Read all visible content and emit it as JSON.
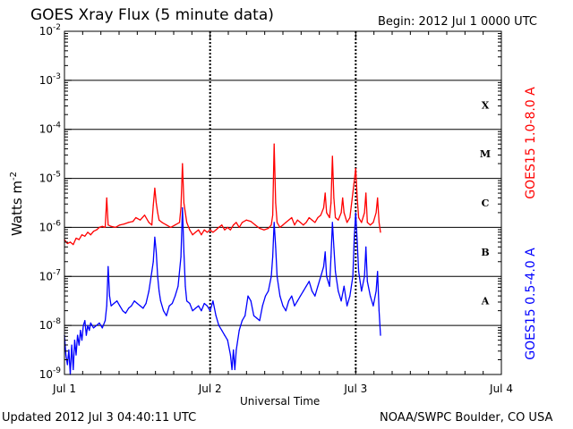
{
  "header": {
    "title": "GOES Xray Flux (5 minute data)",
    "begin": "Begin:  2012 Jul 1 0000 UTC"
  },
  "footer": {
    "updated": "Updated 2012 Jul  3 04:40:11 UTC",
    "credit": "NOAA/SWPC Boulder, CO USA"
  },
  "chart_data": {
    "type": "line",
    "title": "GOES Xray Flux (5 minute data)",
    "xlabel": "Universal Time",
    "ylabel": "Watts m",
    "ylabel_exponent": "-2",
    "y_scale": "log",
    "ylim_exp": [
      -9,
      -2
    ],
    "y_ticks": [
      {
        "base": "10",
        "exp": "-9"
      },
      {
        "base": "10",
        "exp": "-8"
      },
      {
        "base": "10",
        "exp": "-7"
      },
      {
        "base": "10",
        "exp": "-6"
      },
      {
        "base": "10",
        "exp": "-5"
      },
      {
        "base": "10",
        "exp": "-4"
      },
      {
        "base": "10",
        "exp": "-3"
      },
      {
        "base": "10",
        "exp": "-2"
      }
    ],
    "x_unit": "days since 2012 Jul 1 0000 UTC",
    "xlim": [
      0,
      3
    ],
    "x_ticks": [
      "Jul 1",
      "Jul 2",
      "Jul 3",
      "Jul 4"
    ],
    "flare_classes": [
      {
        "label": "A",
        "exp": -7.5
      },
      {
        "label": "B",
        "exp": -6.5
      },
      {
        "label": "C",
        "exp": -5.5
      },
      {
        "label": "M",
        "exp": -4.5
      },
      {
        "label": "X",
        "exp": -3.5
      }
    ],
    "series": [
      {
        "name": "GOES15 1.0-8.0 A",
        "color": "#ff0000",
        "points": [
          [
            0.0,
            -6.25
          ],
          [
            0.02,
            -6.33
          ],
          [
            0.04,
            -6.3
          ],
          [
            0.06,
            -6.35
          ],
          [
            0.08,
            -6.22
          ],
          [
            0.1,
            -6.25
          ],
          [
            0.12,
            -6.15
          ],
          [
            0.14,
            -6.18
          ],
          [
            0.16,
            -6.1
          ],
          [
            0.18,
            -6.15
          ],
          [
            0.2,
            -6.08
          ],
          [
            0.22,
            -6.05
          ],
          [
            0.24,
            -6.0
          ],
          [
            0.26,
            -5.98
          ],
          [
            0.28,
            -6.0
          ],
          [
            0.29,
            -5.4
          ],
          [
            0.3,
            -5.95
          ],
          [
            0.32,
            -5.98
          ],
          [
            0.35,
            -6.0
          ],
          [
            0.38,
            -5.95
          ],
          [
            0.41,
            -5.93
          ],
          [
            0.44,
            -5.9
          ],
          [
            0.47,
            -5.88
          ],
          [
            0.49,
            -5.8
          ],
          [
            0.52,
            -5.85
          ],
          [
            0.55,
            -5.75
          ],
          [
            0.58,
            -5.9
          ],
          [
            0.6,
            -5.95
          ],
          [
            0.61,
            -5.55
          ],
          [
            0.62,
            -5.2
          ],
          [
            0.63,
            -5.5
          ],
          [
            0.64,
            -5.7
          ],
          [
            0.65,
            -5.85
          ],
          [
            0.67,
            -5.9
          ],
          [
            0.7,
            -5.95
          ],
          [
            0.73,
            -6.0
          ],
          [
            0.76,
            -5.95
          ],
          [
            0.79,
            -5.9
          ],
          [
            0.8,
            -5.6
          ],
          [
            0.81,
            -4.7
          ],
          [
            0.82,
            -5.5
          ],
          [
            0.84,
            -5.9
          ],
          [
            0.86,
            -6.05
          ],
          [
            0.88,
            -6.15
          ],
          [
            0.9,
            -6.1
          ],
          [
            0.92,
            -6.05
          ],
          [
            0.94,
            -6.15
          ],
          [
            0.96,
            -6.05
          ],
          [
            0.98,
            -6.1
          ],
          [
            1.0,
            -6.05
          ],
          [
            1.02,
            -6.1
          ],
          [
            1.04,
            -6.05
          ],
          [
            1.06,
            -6.0
          ],
          [
            1.08,
            -5.95
          ],
          [
            1.1,
            -6.05
          ],
          [
            1.12,
            -6.0
          ],
          [
            1.14,
            -6.05
          ],
          [
            1.16,
            -5.95
          ],
          [
            1.18,
            -5.9
          ],
          [
            1.2,
            -6.0
          ],
          [
            1.22,
            -5.9
          ],
          [
            1.25,
            -5.85
          ],
          [
            1.28,
            -5.88
          ],
          [
            1.31,
            -5.95
          ],
          [
            1.34,
            -6.02
          ],
          [
            1.37,
            -6.05
          ],
          [
            1.4,
            -6.02
          ],
          [
            1.42,
            -5.95
          ],
          [
            1.43,
            -5.75
          ],
          [
            1.44,
            -4.3
          ],
          [
            1.45,
            -5.5
          ],
          [
            1.46,
            -5.9
          ],
          [
            1.48,
            -6.0
          ],
          [
            1.5,
            -5.95
          ],
          [
            1.52,
            -5.9
          ],
          [
            1.54,
            -5.85
          ],
          [
            1.56,
            -5.8
          ],
          [
            1.58,
            -5.95
          ],
          [
            1.6,
            -5.85
          ],
          [
            1.62,
            -5.9
          ],
          [
            1.64,
            -5.95
          ],
          [
            1.66,
            -5.9
          ],
          [
            1.68,
            -5.8
          ],
          [
            1.7,
            -5.85
          ],
          [
            1.72,
            -5.9
          ],
          [
            1.74,
            -5.8
          ],
          [
            1.76,
            -5.75
          ],
          [
            1.78,
            -5.6
          ],
          [
            1.79,
            -5.3
          ],
          [
            1.8,
            -5.7
          ],
          [
            1.82,
            -5.8
          ],
          [
            1.83,
            -5.5
          ],
          [
            1.84,
            -4.55
          ],
          [
            1.85,
            -5.4
          ],
          [
            1.86,
            -5.8
          ],
          [
            1.88,
            -5.85
          ],
          [
            1.9,
            -5.7
          ],
          [
            1.91,
            -5.4
          ],
          [
            1.92,
            -5.7
          ],
          [
            1.94,
            -5.9
          ],
          [
            1.96,
            -5.8
          ],
          [
            1.98,
            -5.3
          ],
          [
            2.0,
            -4.8
          ],
          [
            2.01,
            -5.4
          ],
          [
            2.02,
            -5.8
          ],
          [
            2.04,
            -5.9
          ],
          [
            2.06,
            -5.7
          ],
          [
            2.07,
            -5.3
          ],
          [
            2.08,
            -5.9
          ],
          [
            2.1,
            -5.95
          ],
          [
            2.12,
            -5.9
          ],
          [
            2.14,
            -5.7
          ],
          [
            2.15,
            -5.4
          ],
          [
            2.16,
            -5.9
          ],
          [
            2.17,
            -6.1
          ]
        ]
      },
      {
        "name": "GOES15 0.5-4.0 A",
        "color": "#0000ff",
        "points": [
          [
            0.0,
            -8.2
          ],
          [
            0.01,
            -8.6
          ],
          [
            0.02,
            -8.8
          ],
          [
            0.03,
            -8.5
          ],
          [
            0.04,
            -9.0
          ],
          [
            0.05,
            -8.4
          ],
          [
            0.06,
            -8.9
          ],
          [
            0.07,
            -8.3
          ],
          [
            0.08,
            -8.6
          ],
          [
            0.09,
            -8.2
          ],
          [
            0.1,
            -8.4
          ],
          [
            0.11,
            -8.1
          ],
          [
            0.12,
            -8.3
          ],
          [
            0.13,
            -8.0
          ],
          [
            0.14,
            -7.9
          ],
          [
            0.15,
            -8.2
          ],
          [
            0.16,
            -8.0
          ],
          [
            0.17,
            -8.1
          ],
          [
            0.18,
            -7.95
          ],
          [
            0.2,
            -8.05
          ],
          [
            0.22,
            -8.0
          ],
          [
            0.24,
            -7.95
          ],
          [
            0.26,
            -8.05
          ],
          [
            0.28,
            -7.9
          ],
          [
            0.29,
            -7.6
          ],
          [
            0.3,
            -6.8
          ],
          [
            0.31,
            -7.4
          ],
          [
            0.32,
            -7.6
          ],
          [
            0.34,
            -7.55
          ],
          [
            0.36,
            -7.5
          ],
          [
            0.38,
            -7.6
          ],
          [
            0.4,
            -7.7
          ],
          [
            0.42,
            -7.75
          ],
          [
            0.44,
            -7.65
          ],
          [
            0.46,
            -7.6
          ],
          [
            0.48,
            -7.5
          ],
          [
            0.5,
            -7.55
          ],
          [
            0.52,
            -7.6
          ],
          [
            0.54,
            -7.65
          ],
          [
            0.56,
            -7.55
          ],
          [
            0.58,
            -7.3
          ],
          [
            0.6,
            -6.9
          ],
          [
            0.61,
            -6.7
          ],
          [
            0.62,
            -6.2
          ],
          [
            0.63,
            -6.5
          ],
          [
            0.64,
            -7.0
          ],
          [
            0.65,
            -7.3
          ],
          [
            0.66,
            -7.5
          ],
          [
            0.68,
            -7.7
          ],
          [
            0.7,
            -7.8
          ],
          [
            0.72,
            -7.6
          ],
          [
            0.74,
            -7.55
          ],
          [
            0.76,
            -7.4
          ],
          [
            0.78,
            -7.2
          ],
          [
            0.8,
            -6.6
          ],
          [
            0.81,
            -5.6
          ],
          [
            0.82,
            -6.5
          ],
          [
            0.83,
            -7.2
          ],
          [
            0.84,
            -7.5
          ],
          [
            0.86,
            -7.55
          ],
          [
            0.88,
            -7.7
          ],
          [
            0.9,
            -7.65
          ],
          [
            0.92,
            -7.6
          ],
          [
            0.94,
            -7.7
          ],
          [
            0.96,
            -7.55
          ],
          [
            0.98,
            -7.6
          ],
          [
            1.0,
            -7.7
          ],
          [
            1.02,
            -7.5
          ],
          [
            1.04,
            -7.8
          ],
          [
            1.06,
            -8.0
          ],
          [
            1.08,
            -8.1
          ],
          [
            1.1,
            -8.2
          ],
          [
            1.12,
            -8.3
          ],
          [
            1.14,
            -8.6
          ],
          [
            1.15,
            -8.9
          ],
          [
            1.16,
            -8.5
          ],
          [
            1.17,
            -8.9
          ],
          [
            1.18,
            -8.5
          ],
          [
            1.2,
            -8.1
          ],
          [
            1.22,
            -7.9
          ],
          [
            1.24,
            -7.8
          ],
          [
            1.26,
            -7.4
          ],
          [
            1.28,
            -7.5
          ],
          [
            1.3,
            -7.8
          ],
          [
            1.32,
            -7.85
          ],
          [
            1.34,
            -7.9
          ],
          [
            1.36,
            -7.6
          ],
          [
            1.38,
            -7.4
          ],
          [
            1.4,
            -7.3
          ],
          [
            1.42,
            -7.0
          ],
          [
            1.43,
            -6.6
          ],
          [
            1.44,
            -5.9
          ],
          [
            1.45,
            -6.4
          ],
          [
            1.46,
            -7.0
          ],
          [
            1.48,
            -7.4
          ],
          [
            1.5,
            -7.6
          ],
          [
            1.52,
            -7.7
          ],
          [
            1.54,
            -7.5
          ],
          [
            1.56,
            -7.4
          ],
          [
            1.58,
            -7.6
          ],
          [
            1.6,
            -7.5
          ],
          [
            1.62,
            -7.4
          ],
          [
            1.64,
            -7.3
          ],
          [
            1.66,
            -7.2
          ],
          [
            1.68,
            -7.1
          ],
          [
            1.7,
            -7.3
          ],
          [
            1.72,
            -7.4
          ],
          [
            1.74,
            -7.2
          ],
          [
            1.76,
            -7.0
          ],
          [
            1.78,
            -6.8
          ],
          [
            1.79,
            -6.5
          ],
          [
            1.8,
            -7.0
          ],
          [
            1.82,
            -7.2
          ],
          [
            1.83,
            -6.6
          ],
          [
            1.84,
            -5.9
          ],
          [
            1.85,
            -6.4
          ],
          [
            1.86,
            -6.9
          ],
          [
            1.88,
            -7.3
          ],
          [
            1.9,
            -7.5
          ],
          [
            1.92,
            -7.2
          ],
          [
            1.94,
            -7.6
          ],
          [
            1.96,
            -7.4
          ],
          [
            1.98,
            -7.0
          ],
          [
            1.99,
            -6.2
          ],
          [
            2.0,
            -5.7
          ],
          [
            2.01,
            -6.3
          ],
          [
            2.02,
            -6.9
          ],
          [
            2.04,
            -7.3
          ],
          [
            2.06,
            -7.0
          ],
          [
            2.07,
            -6.4
          ],
          [
            2.08,
            -7.1
          ],
          [
            2.1,
            -7.4
          ],
          [
            2.12,
            -7.6
          ],
          [
            2.14,
            -7.3
          ],
          [
            2.15,
            -6.9
          ],
          [
            2.16,
            -7.7
          ],
          [
            2.17,
            -8.2
          ]
        ]
      }
    ]
  }
}
